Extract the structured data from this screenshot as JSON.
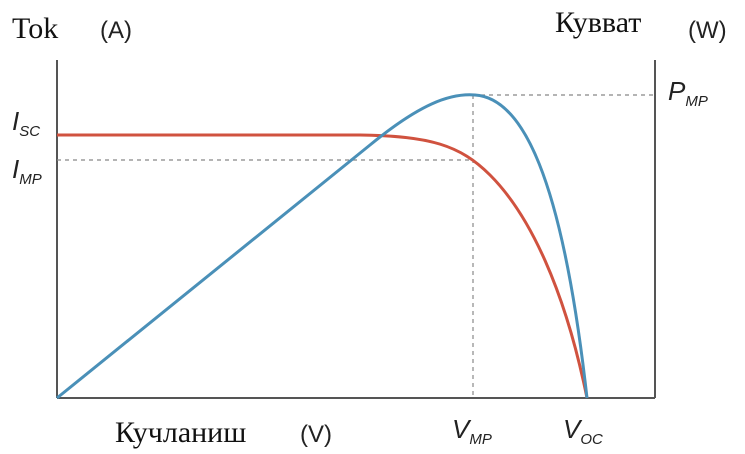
{
  "left_axis": {
    "title": "Tok",
    "unit": "(A)"
  },
  "right_axis": {
    "title": "Кувват",
    "unit": "(W)"
  },
  "bottom_axis": {
    "title": "Кучланиш",
    "unit": "(V)"
  },
  "markers": {
    "isc": {
      "main": "I",
      "sub": "SC"
    },
    "imp": {
      "main": "I",
      "sub": "MP"
    },
    "pmp": {
      "main": "P",
      "sub": "MP"
    },
    "vmp": {
      "main": "V",
      "sub": "MP"
    },
    "voc": {
      "main": "V",
      "sub": "OC"
    }
  }
}
